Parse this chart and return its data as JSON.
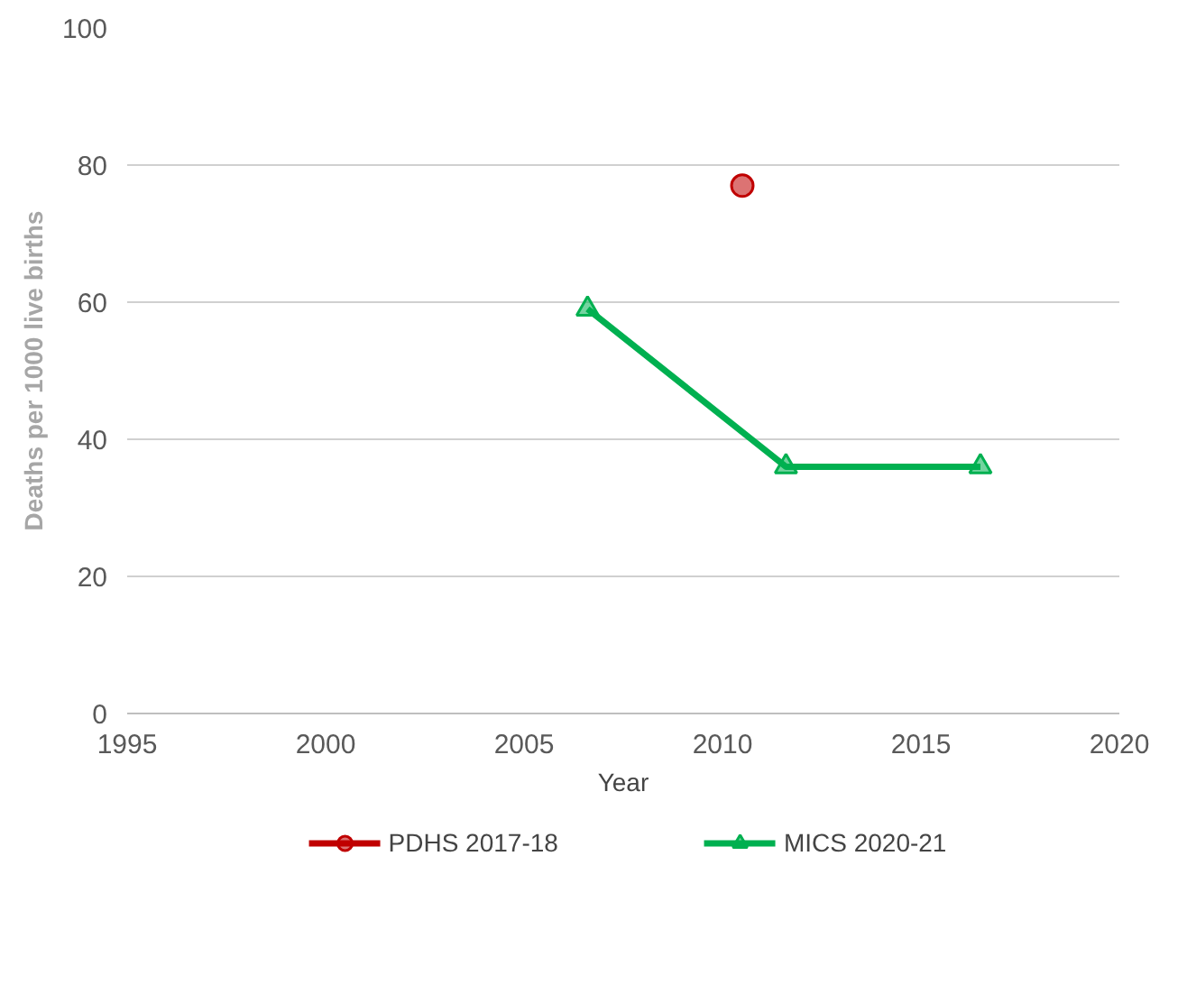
{
  "chart_data": {
    "type": "line",
    "xlabel": "Year",
    "ylabel": "Deaths per 1000 live births",
    "xlim": [
      1995,
      2020
    ],
    "xticks": [
      1995,
      2000,
      2005,
      2010,
      2015,
      2020
    ],
    "ylim": [
      0,
      100
    ],
    "yticks": [
      0,
      20,
      40,
      60,
      80,
      100
    ],
    "grid": "y",
    "legend": "bottom",
    "series": [
      {
        "name": "PDHS 2017-18",
        "color": "#c00000",
        "marker": "circle",
        "x": [
          2010.5
        ],
        "values": [
          77
        ]
      },
      {
        "name": "MICS 2020-21",
        "color": "#00b050",
        "marker": "triangle",
        "x": [
          2006.6,
          2011.6,
          2016.5
        ],
        "values": [
          59,
          36,
          36
        ]
      }
    ]
  }
}
